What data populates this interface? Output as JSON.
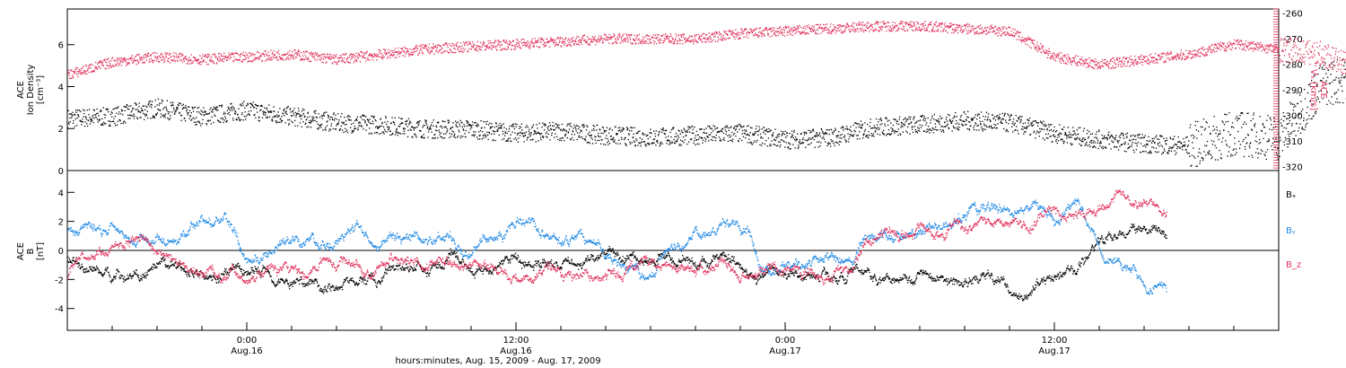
{
  "chart_data": [
    {
      "type": "scatter",
      "panel": "top",
      "ylabel_lines": [
        "ACE",
        "Ion Density",
        "[cm⁻³]"
      ],
      "y2label_lines": [
        "ACE",
        "Vₓ [km/s]"
      ],
      "ylim": [
        0,
        7.7
      ],
      "yticks": [
        0,
        2,
        4,
        6
      ],
      "y2lim": [
        -321.5,
        -258.5
      ],
      "y2ticks": [
        -320,
        -310,
        -300,
        -290,
        -280,
        -270,
        -260
      ],
      "series": [
        {
          "label": "density",
          "color": "#000000",
          "axis": "left",
          "x": [
            0,
            2,
            4,
            6,
            8,
            10,
            12,
            14,
            16,
            18,
            20,
            22,
            24,
            26,
            28,
            30,
            32,
            34,
            36,
            38,
            40,
            42,
            44,
            46,
            48,
            50,
            52,
            54,
            56,
            58,
            60,
            62,
            64
          ],
          "y": [
            2.5,
            2.6,
            3.0,
            2.6,
            2.9,
            2.6,
            2.3,
            2.2,
            2.0,
            2.0,
            1.8,
            1.9,
            1.7,
            1.6,
            1.7,
            1.8,
            1.5,
            1.6,
            2.1,
            2.2,
            2.4,
            2.3,
            1.8,
            1.5,
            1.3,
            1.2,
            1.8,
            1.6,
            4.2,
            4.5,
            3.9,
            5.2,
            6.8
          ]
        },
        {
          "label": "vx",
          "color": "#e0305a",
          "axis": "right",
          "x": [
            0,
            2,
            4,
            6,
            8,
            10,
            12,
            14,
            16,
            18,
            20,
            22,
            24,
            26,
            28,
            30,
            32,
            34,
            36,
            38,
            40,
            42,
            44,
            46,
            48,
            50,
            52,
            54,
            56,
            58,
            60,
            62,
            64
          ],
          "y": [
            -284,
            -279,
            -277,
            -278,
            -277,
            -276,
            -278,
            -276,
            -274,
            -273,
            -272,
            -271,
            -270,
            -270,
            -270,
            -268,
            -267,
            -266,
            -265,
            -265,
            -266,
            -267,
            -277,
            -280,
            -278,
            -276,
            -272,
            -274,
            -276,
            -285,
            -288,
            -290,
            -296
          ]
        }
      ]
    },
    {
      "type": "scatter",
      "panel": "bottom",
      "ylabel_lines": [
        "ACE",
        "B",
        "[nT]"
      ],
      "ylim": [
        -5.5,
        5.5
      ],
      "yticks": [
        -4,
        -2,
        0,
        2,
        4
      ],
      "zero_line": true,
      "xticks": [
        {
          "x": 8,
          "time": "0:00",
          "date": "Aug.16"
        },
        {
          "x": 20,
          "time": "12:00",
          "date": "Aug.16"
        },
        {
          "x": 32,
          "time": "0:00",
          "date": "Aug.17"
        },
        {
          "x": 44,
          "time": "12:00",
          "date": "Aug.17"
        }
      ],
      "xlim": [
        0,
        54
      ],
      "xlabel": "hours:minutes, Aug. 15, 2009 - Aug. 17, 2009",
      "series": [
        {
          "name": "Bₓ",
          "color": "#000000",
          "x": [
            0,
            1,
            2,
            3,
            4,
            5,
            6,
            7,
            8,
            9,
            10,
            11,
            12,
            13,
            14,
            15,
            16,
            17,
            18,
            19,
            20,
            21,
            22,
            23,
            24,
            25,
            26,
            27,
            28,
            29,
            30,
            31,
            32,
            33,
            34,
            35,
            36,
            37,
            38,
            39,
            40,
            41,
            42,
            43,
            44,
            45,
            46,
            47,
            48,
            49
          ],
          "y": [
            -0.5,
            -1.2,
            -1.5,
            -1.6,
            -1.7,
            -1.3,
            -1.5,
            -1.6,
            -1.6,
            -1.4,
            -2.0,
            -2.1,
            -2.2,
            -2.1,
            -2.0,
            -1.0,
            -1.4,
            -0.8,
            -1.2,
            -1.0,
            -0.6,
            -0.8,
            -0.7,
            -0.6,
            -0.4,
            -0.5,
            -0.8,
            -0.4,
            -0.9,
            -0.6,
            -0.8,
            -1.5,
            -1.6,
            -1.5,
            -1.4,
            -1.5,
            -2.0,
            -1.6,
            -1.2,
            -1.9,
            -2.2,
            -1.8,
            -2.8,
            -2.5,
            -1.6,
            -1.5,
            0.5,
            1.2,
            1.5,
            1.0
          ]
        },
        {
          "name": "Bᵧ",
          "color": "#1e88e5",
          "x": [
            0,
            1,
            2,
            3,
            4,
            5,
            6,
            7,
            8,
            9,
            10,
            11,
            12,
            13,
            14,
            15,
            16,
            17,
            18,
            19,
            20,
            21,
            22,
            23,
            24,
            25,
            26,
            27,
            28,
            29,
            30,
            31,
            32,
            33,
            34,
            35,
            36,
            37,
            38,
            39,
            40,
            41,
            42,
            43,
            44,
            45,
            46,
            47,
            48,
            49
          ],
          "y": [
            1.2,
            1.5,
            1.6,
            1.4,
            0.8,
            1.0,
            1.9,
            2.1,
            -0.8,
            -0.5,
            0.2,
            0.5,
            0.6,
            1.0,
            0.8,
            0.5,
            0.9,
            1.0,
            0.6,
            1.5,
            1.8,
            1.2,
            0.6,
            0.7,
            -0.5,
            -1.3,
            -1.8,
            0.5,
            1.5,
            1.8,
            1.2,
            -1.0,
            -1.3,
            -1.2,
            -1.1,
            -1.0,
            1.0,
            1.2,
            1.1,
            2.0,
            2.5,
            2.8,
            2.5,
            3.0,
            2.0,
            3.5,
            0.5,
            -0.8,
            -2.0,
            -2.5
          ]
        },
        {
          "name": "B_z",
          "color": "#e0305a",
          "x": [
            0,
            1,
            2,
            3,
            4,
            5,
            6,
            7,
            8,
            9,
            10,
            11,
            12,
            13,
            14,
            15,
            16,
            17,
            18,
            19,
            20,
            21,
            22,
            23,
            24,
            25,
            26,
            27,
            28,
            29,
            30,
            31,
            32,
            33,
            34,
            35,
            36,
            37,
            38,
            39,
            40,
            41,
            42,
            43,
            44,
            45,
            46,
            47,
            48,
            49
          ],
          "y": [
            -1.8,
            -0.3,
            0.5,
            1.0,
            -0.2,
            -0.5,
            -1.2,
            -1.5,
            -1.6,
            -1.2,
            -1.0,
            -0.9,
            -1.1,
            -1.3,
            -1.0,
            -0.8,
            -1.0,
            -0.9,
            -0.7,
            -1.2,
            -1.5,
            -1.3,
            -1.8,
            -1.5,
            -1.4,
            -1.2,
            -0.8,
            -0.9,
            -1.0,
            -0.8,
            -1.2,
            -1.0,
            -0.9,
            -1.1,
            -1.0,
            -0.6,
            1.2,
            1.4,
            1.5,
            1.0,
            1.8,
            2.2,
            1.8,
            1.2,
            2.4,
            2.0,
            3.2,
            4.0,
            3.2,
            2.6
          ]
        }
      ]
    }
  ]
}
